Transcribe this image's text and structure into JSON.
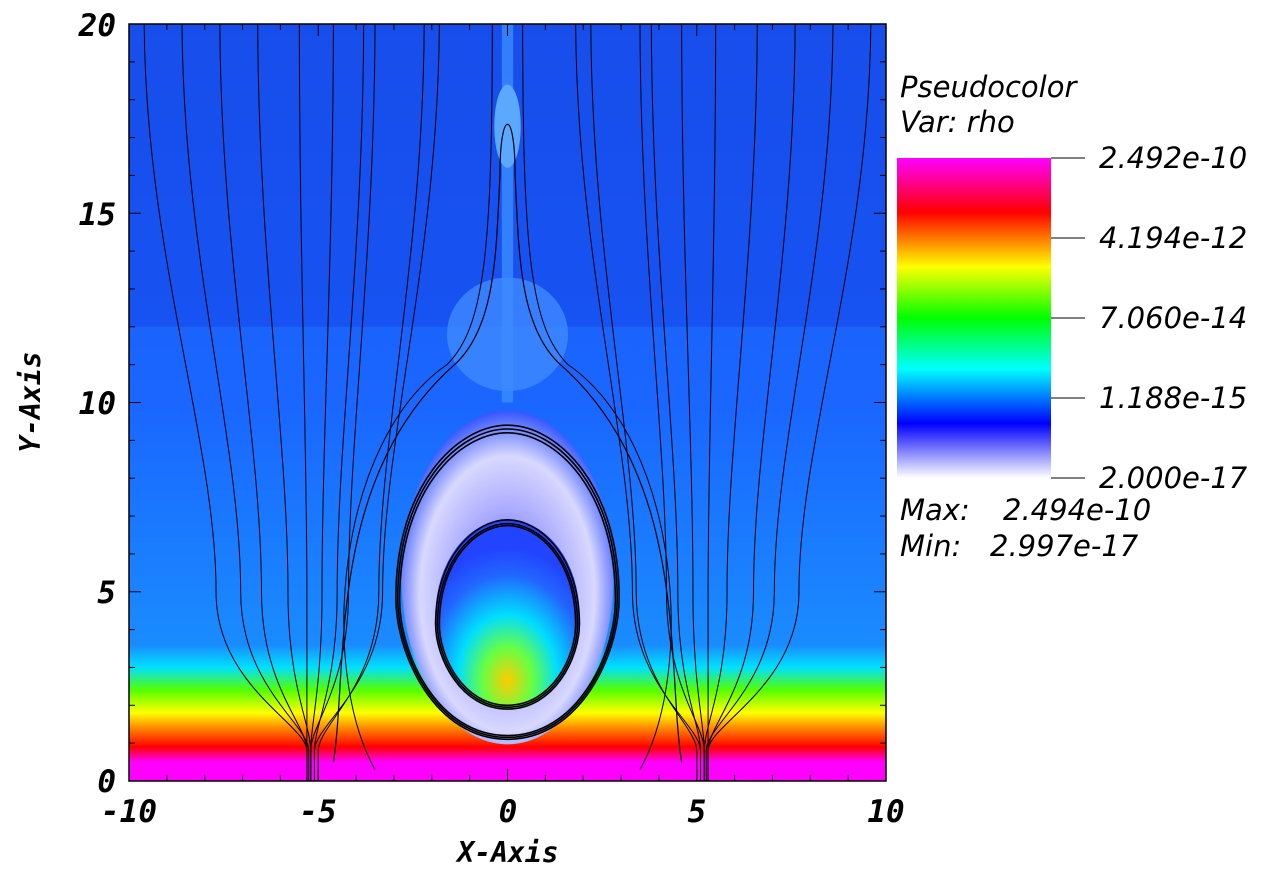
{
  "chart_data": {
    "type": "heatmap",
    "plot_kind": "pseudocolor with magnetic field lines",
    "xlabel": "X-Axis",
    "ylabel": "Y-Axis",
    "xlim": [
      -10,
      10
    ],
    "ylim": [
      0,
      20
    ],
    "x_ticks": [
      -10,
      -5,
      0,
      5,
      10
    ],
    "x_tick_labels": [
      "-10",
      "-5",
      "0",
      "5",
      "10"
    ],
    "y_ticks": [
      0,
      5,
      10,
      15,
      20
    ],
    "y_tick_labels": [
      "0",
      "5",
      "10",
      "15",
      "20"
    ],
    "legend": {
      "title": "Pseudocolor",
      "var_label": "Var: rho",
      "scale": "log",
      "levels": [
        "2.492e-10",
        "4.194e-12",
        "7.060e-14",
        "1.188e-15",
        "2.000e-17"
      ],
      "max_label": "Max:",
      "max_value": "2.494e-10",
      "min_label": "Min:",
      "min_value": "2.997e-17",
      "placement": "right"
    },
    "colormap": [
      "#ff00ff",
      "#ff0000",
      "#ffff00",
      "#00ff00",
      "#00ffff",
      "#0000ff",
      "#ffffff"
    ],
    "background_color": "#1a6bff",
    "flux_rope_center": [
      0,
      4.3
    ],
    "inner_loop": {
      "cx": 0,
      "y_bottom": 1.9,
      "y_top": 6.9,
      "half_width": 1.9
    },
    "middle_loop": {
      "cx": 0,
      "y_bottom": 1.1,
      "y_top": 9.4,
      "half_width": 3.0
    },
    "outer_loop": {
      "cx": 0,
      "y_bottom": 0.5,
      "y_top": 17.8,
      "half_width": 4.5
    }
  }
}
